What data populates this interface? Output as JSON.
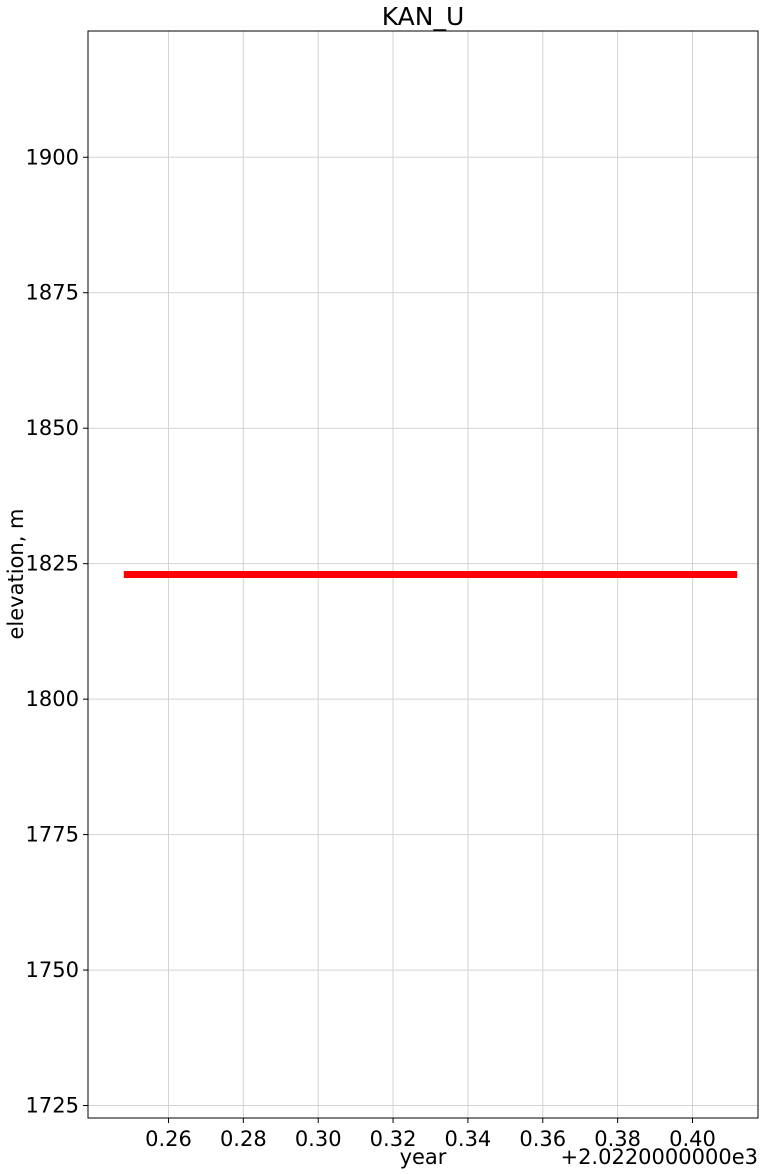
{
  "chart_data": {
    "type": "line",
    "title": "KAN_U",
    "xlabel": "year",
    "ylabel": "elevation, m",
    "x_offset_label": "+2.0220000000e3",
    "xlim": [
      0.2385,
      0.4175
    ],
    "ylim": [
      1722.7,
      1923.3
    ],
    "xticks": [
      0.26,
      0.28,
      0.3,
      0.32,
      0.34,
      0.36,
      0.38,
      0.4
    ],
    "xtick_labels": [
      "0.26",
      "0.28",
      "0.30",
      "0.32",
      "0.34",
      "0.36",
      "0.38",
      "0.40"
    ],
    "yticks": [
      1725,
      1750,
      1775,
      1800,
      1825,
      1850,
      1875,
      1900
    ],
    "ytick_labels": [
      "1725",
      "1750",
      "1775",
      "1800",
      "1825",
      "1850",
      "1875",
      "1900"
    ],
    "grid": true,
    "series": [
      {
        "color": "#ff0000",
        "x": [
          0.249,
          0.411
        ],
        "y": [
          1823,
          1823
        ]
      }
    ]
  }
}
